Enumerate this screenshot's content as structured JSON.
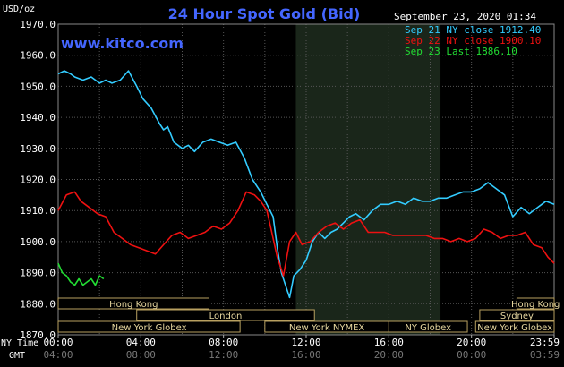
{
  "chart_data": {
    "type": "line",
    "title": "24 Hour Spot Gold (Bid)",
    "unit_label": "USD/oz",
    "watermark": "www.kitco.com",
    "timestamp": "September 23, 2020 01:34",
    "ylim": [
      1870,
      1970
    ],
    "grid": true,
    "legend_position": "top-right",
    "y_ticks": [
      "1970.0",
      "1960.0",
      "1950.0",
      "1940.0",
      "1930.0",
      "1920.0",
      "1910.0",
      "1900.0",
      "1890.0",
      "1880.0",
      "1870.0"
    ],
    "x_ticks": {
      "ny_label": "NY Time",
      "gmt_label": "GMT",
      "ny": [
        "00:00",
        "04:00",
        "08:00",
        "12:00",
        "16:00",
        "20:00",
        "23:59"
      ],
      "gmt": [
        "04:00",
        "08:00",
        "12:00",
        "16:00",
        "20:00",
        "00:00",
        "03:59"
      ]
    },
    "xlim": [
      0,
      24
    ],
    "shaded_region": [
      11.5,
      18.5
    ],
    "sessions": [
      {
        "label": "Hong Kong",
        "start": 0,
        "end": 7.3,
        "row": 0
      },
      {
        "label": "Hong Kong",
        "start": 22.2,
        "end": 24,
        "row": 0
      },
      {
        "label": "London",
        "start": 3.8,
        "end": 12.4,
        "row": 1
      },
      {
        "label": "Sydney",
        "start": 20.4,
        "end": 24,
        "row": 1
      },
      {
        "label": "New York Globex",
        "start": 0,
        "end": 8.8,
        "row": 2
      },
      {
        "label": "New York NYMEX",
        "start": 10.0,
        "end": 16.0,
        "row": 2
      },
      {
        "label": "NY Globex",
        "start": 16.0,
        "end": 19.8,
        "row": 2
      },
      {
        "label": "New York Globex",
        "start": 20.2,
        "end": 24,
        "row": 2
      }
    ],
    "series": [
      {
        "name": "Sep 21 NY close 1912.40",
        "color": "#33CCFF",
        "x": [
          0,
          0.3,
          0.6,
          0.8,
          1.2,
          1.6,
          2.0,
          2.3,
          2.6,
          3.0,
          3.4,
          3.8,
          4.1,
          4.5,
          4.9,
          5.1,
          5.3,
          5.6,
          6.0,
          6.3,
          6.6,
          7.0,
          7.4,
          7.8,
          8.2,
          8.6,
          9.0,
          9.4,
          9.8,
          10.1,
          10.4,
          10.6,
          10.8,
          11.0,
          11.2,
          11.4,
          11.7,
          12.0,
          12.3,
          12.6,
          12.9,
          13.2,
          13.5,
          13.8,
          14.1,
          14.4,
          14.8,
          15.2,
          15.6,
          16.0,
          16.4,
          16.8,
          17.2,
          17.6,
          18.0,
          18.4,
          18.8,
          19.2,
          19.6,
          20.0,
          20.4,
          20.8,
          21.2,
          21.6,
          22.0,
          22.4,
          22.8,
          23.2,
          23.6,
          24.0
        ],
        "values": [
          1954,
          1955,
          1954,
          1953,
          1952,
          1953,
          1951,
          1952,
          1951,
          1952,
          1955,
          1950,
          1946,
          1943,
          1938,
          1936,
          1937,
          1932,
          1930,
          1931,
          1929,
          1932,
          1933,
          1932,
          1931,
          1932,
          1927,
          1920,
          1916,
          1912,
          1908,
          1898,
          1890,
          1886,
          1882,
          1889,
          1891,
          1894,
          1900,
          1903,
          1901,
          1903,
          1904,
          1906,
          1908,
          1909,
          1907,
          1910,
          1912,
          1912,
          1913,
          1912,
          1914,
          1913,
          1913,
          1914,
          1914,
          1915,
          1916,
          1916,
          1917,
          1919,
          1917,
          1915,
          1908,
          1911,
          1909,
          1911,
          1913,
          1912
        ]
      },
      {
        "name": "Sep 22 NY close 1900.10",
        "color": "#EE1111",
        "x": [
          0,
          0.4,
          0.8,
          1.1,
          1.5,
          1.9,
          2.3,
          2.7,
          3.1,
          3.5,
          3.9,
          4.3,
          4.7,
          5.1,
          5.5,
          5.9,
          6.3,
          6.7,
          7.1,
          7.5,
          7.9,
          8.3,
          8.7,
          9.1,
          9.5,
          9.8,
          10.1,
          10.3,
          10.6,
          10.9,
          11.2,
          11.5,
          11.8,
          12.2,
          12.6,
          13.0,
          13.4,
          13.8,
          14.2,
          14.6,
          15.0,
          15.4,
          15.8,
          16.2,
          16.6,
          17.0,
          17.4,
          17.8,
          18.2,
          18.6,
          19.0,
          19.4,
          19.8,
          20.2,
          20.6,
          21.0,
          21.4,
          21.8,
          22.2,
          22.6,
          23.0,
          23.4,
          23.7,
          24.0
        ],
        "values": [
          1910,
          1915,
          1916,
          1913,
          1911,
          1909,
          1908,
          1903,
          1901,
          1899,
          1898,
          1897,
          1896,
          1899,
          1902,
          1903,
          1901,
          1902,
          1903,
          1905,
          1904,
          1906,
          1910,
          1916,
          1915,
          1913,
          1910,
          1904,
          1895,
          1889,
          1900,
          1903,
          1899,
          1900,
          1903,
          1905,
          1906,
          1904,
          1906,
          1907,
          1903,
          1903,
          1903,
          1902,
          1902,
          1902,
          1902,
          1902,
          1901,
          1901,
          1900,
          1901,
          1900,
          1901,
          1904,
          1903,
          1901,
          1902,
          1902,
          1903,
          1899,
          1898,
          1895,
          1893
        ]
      },
      {
        "name": "Sep 23 Last 1886.10",
        "color": "#22DD33",
        "x": [
          0,
          0.2,
          0.4,
          0.6,
          0.8,
          1.0,
          1.2,
          1.4,
          1.6,
          1.8,
          2.0,
          2.2
        ],
        "values": [
          1893,
          1890,
          1889,
          1887,
          1886,
          1888,
          1886,
          1887,
          1888,
          1886,
          1889,
          1888
        ]
      }
    ]
  }
}
